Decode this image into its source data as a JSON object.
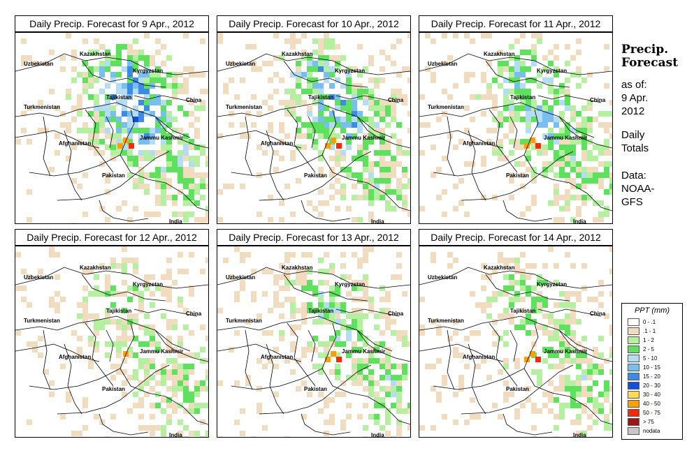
{
  "panels": [
    {
      "title": "Daily Precip. Forecast for  9 Apr., 2012",
      "seed": 11,
      "intensity": 1.0
    },
    {
      "title": "Daily Precip. Forecast for  10 Apr., 2012",
      "seed": 23,
      "intensity": 0.85
    },
    {
      "title": "Daily Precip. Forecast for  11 Apr., 2012",
      "seed": 37,
      "intensity": 0.75
    },
    {
      "title": "Daily Precip. Forecast for  12 Apr., 2012",
      "seed": 41,
      "intensity": 0.35
    },
    {
      "title": "Daily Precip. Forecast for  13 Apr., 2012",
      "seed": 53,
      "intensity": 0.55
    },
    {
      "title": "Daily Precip. Forecast for  14 Apr., 2012",
      "seed": 67,
      "intensity": 0.45
    }
  ],
  "map_labels": {
    "uzbekistan": "Uzbekistan",
    "kazakhstan": "Kazakhstan",
    "kyrgyzstan": "Kyrgyzstan",
    "tajikistan": "Tajikistan",
    "turkmenistan": "Turkmenistan",
    "china": "China",
    "afghanistan": "Afghanistan",
    "jammu_kashmir": "Jammu Kashmir",
    "pakistan": "Pakistan",
    "india": "India"
  },
  "side": {
    "title_line1": "Precip.",
    "title_line2": "Forecast",
    "asof_line1": "as of:",
    "asof_line2": "9 Apr.",
    "asof_line3": "2012",
    "totals_line1": "Daily",
    "totals_line2": "Totals",
    "data_line1": "Data:",
    "data_line2": "NOAA-",
    "data_line3": "GFS"
  },
  "legend": {
    "title": "PPT (mm)",
    "items": [
      {
        "label": "0 - .1",
        "color": "#ffffff"
      },
      {
        "label": ".1 - 1",
        "color": "#f1dcc0"
      },
      {
        "label": "1 - 2",
        "color": "#b4f0a0"
      },
      {
        "label": "2 - 5",
        "color": "#5ee25e"
      },
      {
        "label": "5 - 10",
        "color": "#b4dcf5"
      },
      {
        "label": "10 - 15",
        "color": "#78bef0"
      },
      {
        "label": "15 - 20",
        "color": "#3c8ce6"
      },
      {
        "label": "20 - 30",
        "color": "#1450dc"
      },
      {
        "label": "30 - 40",
        "color": "#ffdc50"
      },
      {
        "label": "40 - 50",
        "color": "#ffa000"
      },
      {
        "label": "50 - 75",
        "color": "#ff2800"
      },
      {
        "label": "> 75",
        "color": "#a01414"
      },
      {
        "label": "nodata",
        "color": "#c8c8c8"
      }
    ]
  }
}
